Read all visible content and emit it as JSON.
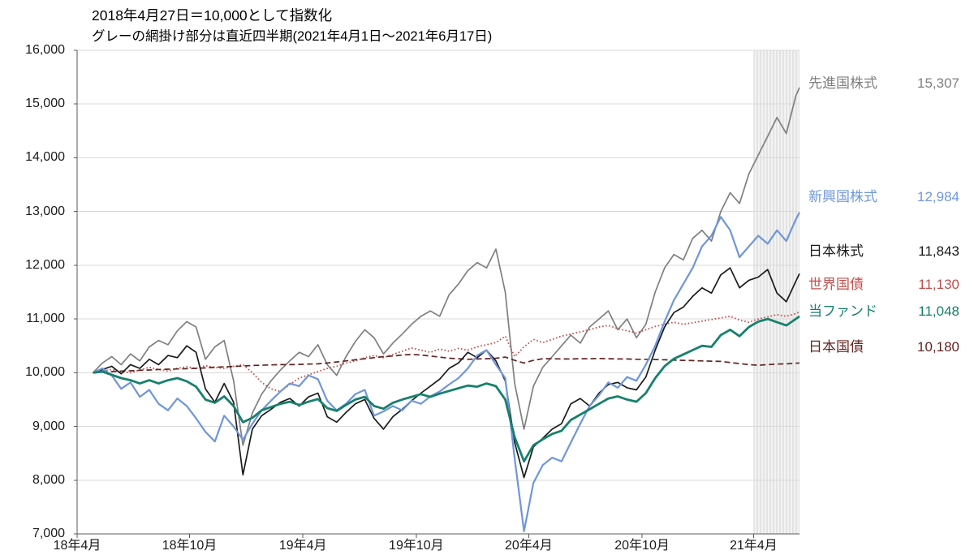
{
  "chart_data": {
    "type": "line",
    "title": "2018年4月27日＝10,000として指数化",
    "subtitle": "グレーの網掛け部分は直近四半期(2021年4月1日～2021年6月17日)",
    "grid": true,
    "legend_position": "right",
    "xlim": [
      -0.85,
      37.7
    ],
    "ylim": [
      7000,
      16000
    ],
    "y_ticks": [
      {
        "value": 16000,
        "label": "16,000"
      },
      {
        "value": 15000,
        "label": "15,000"
      },
      {
        "value": 14000,
        "label": "14,000"
      },
      {
        "value": 13000,
        "label": "13,000"
      },
      {
        "value": 12000,
        "label": "12,000"
      },
      {
        "value": 11000,
        "label": "11,000"
      },
      {
        "value": 10000,
        "label": "10,000"
      },
      {
        "value": 9000,
        "label": "9,000"
      },
      {
        "value": 8000,
        "label": "8,000"
      },
      {
        "value": 7000,
        "label": "7,000"
      }
    ],
    "x_ticks": [
      {
        "x": -0.85,
        "label": "18年4月"
      },
      {
        "x": 5.15,
        "label": "18年10月"
      },
      {
        "x": 11.2,
        "label": "19年4月"
      },
      {
        "x": 17.25,
        "label": "19年10月"
      },
      {
        "x": 23.25,
        "label": "20年4月"
      },
      {
        "x": 29.3,
        "label": "20年10月"
      },
      {
        "x": 35.25,
        "label": "21年4月"
      }
    ],
    "shaded_region": {
      "x0": 35.25,
      "x1": 37.7,
      "meaning": "直近四半期(2021年4月1日～2021年6月17日)"
    },
    "x_unit": "months since 2018-04-27",
    "x": [
      0,
      0.5,
      1,
      1.5,
      2,
      2.5,
      3,
      3.5,
      4,
      4.5,
      5,
      5.5,
      6,
      6.5,
      7,
      7.5,
      8,
      8.5,
      9,
      9.5,
      10,
      10.5,
      11,
      11.5,
      12,
      12.5,
      13,
      13.5,
      14,
      14.5,
      15,
      15.5,
      16,
      16.5,
      17,
      17.5,
      18,
      18.5,
      19,
      19.5,
      20,
      20.5,
      21,
      21.5,
      22,
      22.5,
      23,
      23.5,
      24,
      24.5,
      25,
      25.5,
      26,
      26.5,
      27,
      27.5,
      28,
      28.5,
      29,
      29.5,
      30,
      30.5,
      31,
      31.5,
      32,
      32.5,
      33,
      33.5,
      34,
      34.5,
      35,
      35.5,
      36,
      36.5,
      37,
      37.5,
      37.7
    ],
    "series": [
      {
        "key": "developed-equity",
        "name": "先進国株式",
        "value": 15307,
        "value_label": "15,307",
        "color": "#7f7f7f",
        "style": "solid",
        "width": 1.7,
        "label_dy": -5,
        "values": [
          10000,
          10180,
          10300,
          10150,
          10350,
          10220,
          10480,
          10600,
          10520,
          10780,
          10950,
          10850,
          10250,
          10480,
          10600,
          9850,
          8650,
          9250,
          9600,
          9850,
          10050,
          10220,
          10380,
          10300,
          10520,
          10150,
          9950,
          10300,
          10580,
          10800,
          10650,
          10350,
          10550,
          10720,
          10900,
          11050,
          11150,
          11050,
          11450,
          11650,
          11900,
          12050,
          11950,
          12300,
          11500,
          9800,
          8950,
          9750,
          10100,
          10300,
          10500,
          10700,
          10550,
          10850,
          11000,
          11150,
          10800,
          11000,
          10650,
          10900,
          11500,
          11950,
          12200,
          12100,
          12500,
          12650,
          12450,
          13000,
          13350,
          13150,
          13700,
          14050,
          14400,
          14750,
          14450,
          15150,
          15307
        ]
      },
      {
        "key": "emerging-equity",
        "name": "新興国株式",
        "value": 12984,
        "value_label": "12,984",
        "color": "#6f96d8",
        "style": "solid",
        "width": 2.2,
        "label_dy": -19,
        "values": [
          10000,
          10080,
          9950,
          9700,
          9820,
          9550,
          9680,
          9420,
          9300,
          9520,
          9380,
          9150,
          8900,
          8720,
          9200,
          9000,
          8750,
          9050,
          9300,
          9480,
          9650,
          9800,
          9750,
          9950,
          9880,
          9480,
          9300,
          9420,
          9600,
          9680,
          9200,
          9280,
          9380,
          9300,
          9480,
          9420,
          9560,
          9650,
          9780,
          9900,
          10080,
          10320,
          10420,
          10150,
          9900,
          8400,
          7050,
          7950,
          8280,
          8420,
          8350,
          8700,
          9050,
          9380,
          9580,
          9820,
          9720,
          9920,
          9850,
          10150,
          10500,
          10950,
          11350,
          11650,
          11950,
          12350,
          12550,
          12900,
          12650,
          12150,
          12350,
          12550,
          12400,
          12650,
          12450,
          12850,
          12984
        ]
      },
      {
        "key": "japan-equity",
        "name": "日本株式",
        "value": 11843,
        "value_label": "11,843",
        "color": "#1a1a1a",
        "style": "solid",
        "width": 1.7,
        "label_dy": -27,
        "values": [
          10000,
          10060,
          10120,
          9980,
          10150,
          10080,
          10250,
          10150,
          10320,
          10280,
          10500,
          10380,
          9700,
          9450,
          9800,
          9450,
          8100,
          8950,
          9200,
          9320,
          9450,
          9520,
          9380,
          9550,
          9620,
          9180,
          9080,
          9260,
          9420,
          9500,
          9150,
          8950,
          9180,
          9320,
          9480,
          9620,
          9750,
          9880,
          10080,
          10180,
          10380,
          10280,
          10420,
          10220,
          9850,
          8700,
          8050,
          8620,
          8780,
          8950,
          9050,
          9420,
          9520,
          9380,
          9620,
          9780,
          9820,
          9720,
          9680,
          9920,
          10420,
          10850,
          11120,
          11220,
          11420,
          11580,
          11480,
          11820,
          11950,
          11580,
          11720,
          11780,
          11920,
          11480,
          11320,
          11700,
          11843
        ]
      },
      {
        "key": "global-bond",
        "name": "世界国債",
        "value": 11130,
        "value_label": "11,130",
        "color": "#c0504d",
        "style": "dotted",
        "width": 1.8,
        "label_dy": -34,
        "values": [
          10000,
          10030,
          10060,
          10020,
          10000,
          10050,
          10100,
          10060,
          10030,
          10080,
          10110,
          10080,
          10130,
          10100,
          10080,
          10120,
          10150,
          10000,
          9820,
          9700,
          9650,
          9780,
          9900,
          9960,
          10020,
          10080,
          10120,
          10180,
          10220,
          10280,
          10320,
          10280,
          10340,
          10400,
          10460,
          10420,
          10380,
          10440,
          10400,
          10450,
          10420,
          10480,
          10520,
          10560,
          10680,
          10300,
          10480,
          10620,
          10560,
          10620,
          10680,
          10720,
          10760,
          10800,
          10850,
          10880,
          10820,
          10780,
          10740,
          10800,
          10860,
          10900,
          10940,
          10900,
          10930,
          10960,
          10990,
          11020,
          11050,
          10980,
          10940,
          11000,
          11040,
          11080,
          11050,
          11100,
          11130
        ]
      },
      {
        "key": "this-fund",
        "name": "当ファンド",
        "value": 11048,
        "value_label": "11,048",
        "color": "#17806d",
        "style": "solid",
        "width": 2.8,
        "label_dy": -6,
        "values": [
          10000,
          10020,
          9960,
          9900,
          9860,
          9800,
          9860,
          9800,
          9860,
          9900,
          9840,
          9740,
          9500,
          9440,
          9560,
          9380,
          9080,
          9160,
          9300,
          9360,
          9420,
          9460,
          9400,
          9460,
          9510,
          9340,
          9290,
          9400,
          9500,
          9550,
          9380,
          9330,
          9440,
          9500,
          9550,
          9600,
          9550,
          9610,
          9660,
          9710,
          9760,
          9740,
          9800,
          9750,
          9500,
          8800,
          8350,
          8650,
          8760,
          8860,
          8920,
          9120,
          9220,
          9320,
          9420,
          9520,
          9560,
          9500,
          9460,
          9620,
          9900,
          10120,
          10260,
          10340,
          10420,
          10500,
          10480,
          10700,
          10800,
          10680,
          10850,
          10950,
          11000,
          10940,
          10880,
          11000,
          11048
        ]
      },
      {
        "key": "japan-bond",
        "name": "日本国債",
        "value": 10180,
        "value_label": "10,180",
        "color": "#632423",
        "style": "dashed",
        "width": 1.7,
        "label_dy": -19,
        "values": [
          10000,
          10010,
          10020,
          10030,
          10035,
          10045,
          10050,
          10060,
          10065,
          10070,
          10075,
          10080,
          10090,
          10100,
          10110,
          10115,
          10125,
          10135,
          10140,
          10145,
          10150,
          10150,
          10155,
          10160,
          10165,
          10180,
          10200,
          10220,
          10240,
          10260,
          10280,
          10300,
          10310,
          10330,
          10340,
          10330,
          10310,
          10290,
          10270,
          10260,
          10250,
          10255,
          10260,
          10270,
          10290,
          10230,
          10180,
          10230,
          10260,
          10260,
          10255,
          10255,
          10260,
          10260,
          10265,
          10260,
          10255,
          10255,
          10250,
          10250,
          10245,
          10240,
          10235,
          10230,
          10225,
          10220,
          10215,
          10210,
          10190,
          10170,
          10150,
          10140,
          10150,
          10160,
          10165,
          10175,
          10180
        ]
      }
    ]
  }
}
